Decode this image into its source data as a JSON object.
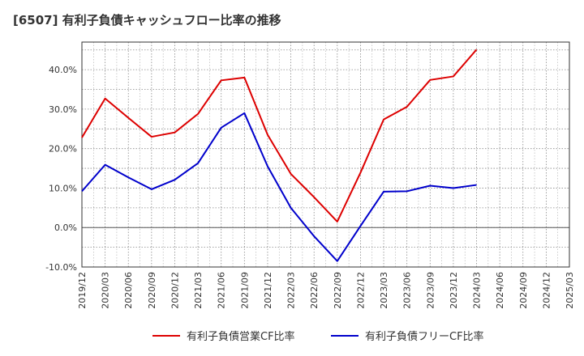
{
  "chart_data": {
    "type": "line",
    "title": "[6507]  有利子負債キャッシュフロー比率の推移",
    "xlabel": "",
    "ylabel": "",
    "ylim": [
      -10,
      47
    ],
    "yticks": [
      -10,
      0,
      10,
      20,
      30,
      40
    ],
    "ytick_labels": [
      "-10.0%",
      "0.0%",
      "10.0%",
      "20.0%",
      "30.0%",
      "40.0%"
    ],
    "categories": [
      "2019/12",
      "2020/03",
      "2020/06",
      "2020/09",
      "2020/12",
      "2021/03",
      "2021/06",
      "2021/09",
      "2021/12",
      "2022/03",
      "2022/06",
      "2022/09",
      "2022/12",
      "2023/03",
      "2023/06",
      "2023/09",
      "2023/12",
      "2024/03",
      "2024/06",
      "2024/09",
      "2024/12",
      "2025/03"
    ],
    "grid": true,
    "legend_position": "bottom",
    "series": [
      {
        "name": "有利子負債営業CF比率",
        "color": "#dd0000",
        "values": [
          22.8,
          32.7,
          27.8,
          23.0,
          24.1,
          28.8,
          37.3,
          38.0,
          23.5,
          13.6,
          7.7,
          1.5,
          13.9,
          27.4,
          30.6,
          37.4,
          38.3,
          45.1,
          null,
          null,
          null,
          null
        ]
      },
      {
        "name": "有利子負債フリーCF比率",
        "color": "#0000cc",
        "values": [
          9.2,
          15.9,
          12.7,
          9.7,
          12.1,
          16.3,
          25.3,
          29.0,
          15.5,
          5.0,
          -2.2,
          -8.5,
          0.4,
          9.1,
          9.2,
          10.6,
          10.0,
          10.8,
          null,
          null,
          null,
          null
        ]
      }
    ]
  }
}
